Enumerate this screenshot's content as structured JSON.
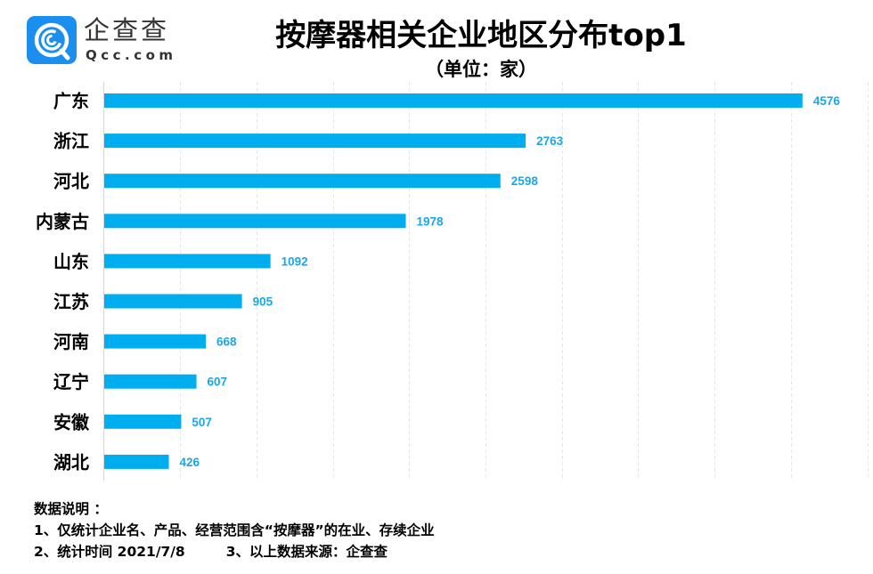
{
  "logo": {
    "name_cn": "企查查",
    "name_en": "Qcc.com",
    "color": "#1a8ff0"
  },
  "header": {
    "title": "按摩器相关企业地区分布top1",
    "subtitle": "（单位：家）"
  },
  "chart_data": {
    "type": "bar",
    "orientation": "horizontal",
    "title": "按摩器相关企业地区分布top1",
    "subtitle": "（单位：家）",
    "xlabel": "",
    "ylabel": "",
    "categories": [
      "广东",
      "浙江",
      "河北",
      "内蒙古",
      "山东",
      "江苏",
      "河南",
      "辽宁",
      "安徽",
      "湖北"
    ],
    "values": [
      4576,
      2763,
      2598,
      1978,
      1092,
      905,
      668,
      607,
      507,
      426
    ],
    "xlim": [
      0,
      5000
    ],
    "grid_step": 500,
    "grid": true,
    "grid_style": "dashed vertical",
    "tick_labels_shown": false,
    "data_labels": true,
    "bar_color": "#00aeef",
    "label_color": "#1aa7e8",
    "legend": "none"
  },
  "notes": {
    "heading": "数据说明 ：",
    "line1": "1、仅统计企业名、产品、经营范围含“按摩器”的在业、存续企业",
    "line2a": "2、统计时间 2021/7/8",
    "line2b": "3、以上数据来源：企查查"
  }
}
